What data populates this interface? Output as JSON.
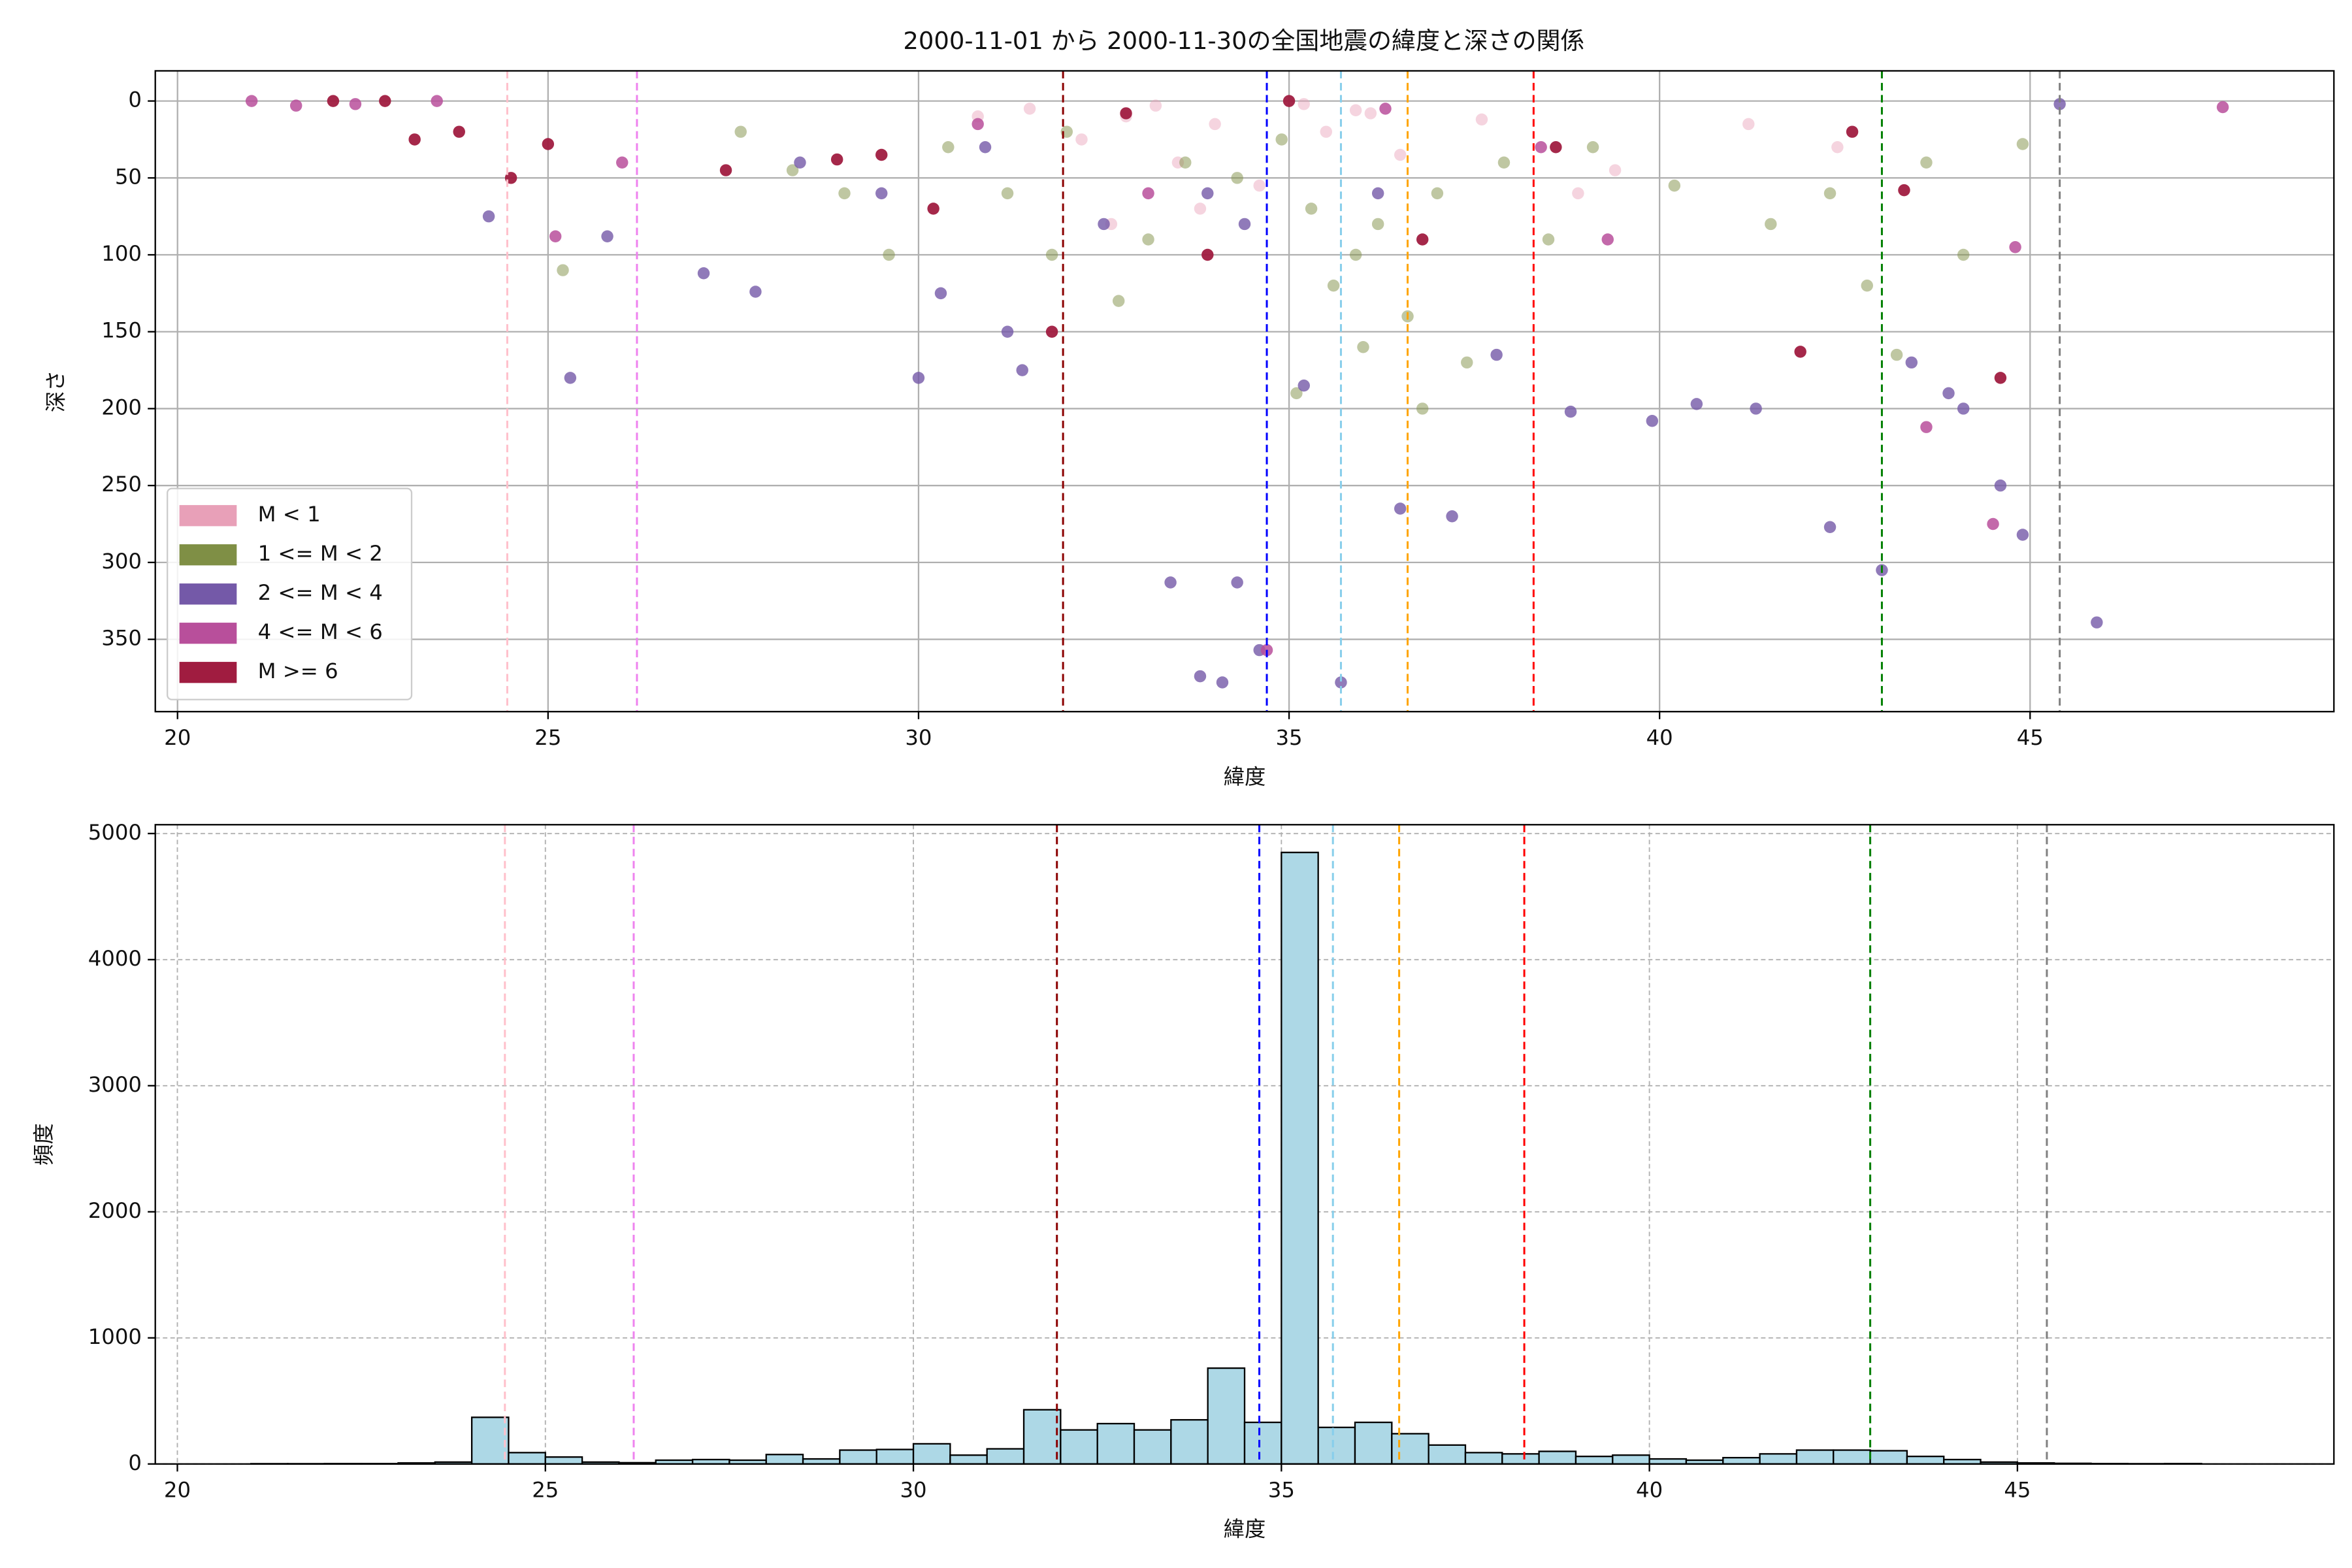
{
  "chart_data": [
    {
      "type": "scatter",
      "title": "2000-11-01 から 2000-11-30の全国地震の緯度と深さの関係",
      "xlabel": "緯度",
      "ylabel": "深さ",
      "xlim": [
        19.7,
        49.1
      ],
      "ylim": [
        397,
        -19.6
      ],
      "xticks": [
        20,
        25,
        30,
        35,
        40,
        45
      ],
      "yticks": [
        0,
        50,
        100,
        150,
        200,
        250,
        300,
        350
      ],
      "grid": true,
      "grid_style": "solid",
      "legend": "lower left",
      "vlines": [
        {
          "x": 24.45,
          "color": "pink"
        },
        {
          "x": 26.2,
          "color": "violet"
        },
        {
          "x": 31.95,
          "color": "darkred"
        },
        {
          "x": 34.7,
          "color": "blue"
        },
        {
          "x": 35.7,
          "color": "skyblue"
        },
        {
          "x": 36.6,
          "color": "orange"
        },
        {
          "x": 38.3,
          "color": "red"
        },
        {
          "x": 43.0,
          "color": "green"
        },
        {
          "x": 45.4,
          "color": "gray"
        }
      ],
      "series": [
        {
          "name": "M < 1",
          "color": "#e8a0b8",
          "alpha": 0.45,
          "x": [
            31.5,
            32.8,
            33.2,
            34.0,
            35.2,
            35.5,
            36.1,
            33.5,
            32.2,
            38.9,
            42.4,
            37.6,
            34.6,
            35.9,
            33.8,
            39.4,
            30.8,
            36.5,
            32.6,
            41.2
          ],
          "values": [
            5,
            10,
            3,
            15,
            2,
            20,
            8,
            40,
            25,
            60,
            30,
            12,
            55,
            6,
            70,
            45,
            10,
            35,
            80,
            15
          ]
        },
        {
          "name": "1 <= M < 2",
          "color": "#7f8f45",
          "alpha": 0.5,
          "x": [
            25.2,
            28.3,
            29.6,
            30.4,
            31.2,
            32.0,
            32.7,
            33.1,
            33.6,
            34.3,
            34.9,
            35.3,
            35.6,
            35.9,
            36.2,
            36.6,
            37.0,
            37.4,
            37.9,
            38.5,
            39.1,
            40.2,
            41.5,
            42.3,
            42.8,
            43.2,
            43.6,
            44.1,
            44.9,
            36.0,
            35.1,
            36.8,
            31.8,
            29.0,
            27.6
          ],
          "values": [
            110,
            45,
            100,
            30,
            60,
            20,
            130,
            90,
            40,
            50,
            25,
            70,
            120,
            100,
            80,
            140,
            60,
            170,
            40,
            90,
            30,
            55,
            80,
            60,
            120,
            165,
            40,
            100,
            28,
            160,
            190,
            200,
            100,
            60,
            20
          ]
        },
        {
          "name": "2 <= M < 4",
          "color": "#7459a8",
          "alpha": 0.8,
          "x": [
            24.2,
            25.3,
            25.8,
            27.1,
            27.8,
            28.4,
            29.5,
            30.0,
            30.9,
            31.2,
            31.4,
            32.5,
            33.4,
            33.9,
            34.1,
            34.3,
            34.6,
            35.2,
            35.7,
            36.2,
            36.5,
            37.2,
            37.8,
            38.8,
            39.9,
            40.5,
            41.3,
            42.3,
            43.0,
            43.4,
            43.9,
            44.1,
            44.6,
            44.9,
            45.4,
            45.9,
            33.8,
            34.4,
            30.3
          ],
          "values": [
            75,
            180,
            88,
            112,
            124,
            40,
            60,
            180,
            30,
            150,
            175,
            80,
            313,
            60,
            378,
            313,
            357,
            185,
            378,
            60,
            265,
            270,
            165,
            202,
            208,
            197,
            200,
            277,
            305,
            170,
            190,
            200,
            250,
            282,
            2,
            339,
            374,
            80,
            125
          ]
        },
        {
          "name": "4 <= M < 6",
          "color": "#b84f9b",
          "alpha": 0.85,
          "x": [
            21.0,
            21.6,
            22.4,
            23.5,
            25.1,
            26.0,
            30.8,
            33.1,
            34.7,
            36.3,
            39.3,
            43.6,
            44.5,
            44.8,
            47.6,
            38.4
          ],
          "values": [
            0,
            3,
            2,
            0,
            88,
            40,
            15,
            60,
            357,
            5,
            90,
            212,
            275,
            95,
            4,
            30
          ]
        },
        {
          "name": "M >= 6",
          "color": "#a01c40",
          "alpha": 0.95,
          "x": [
            22.1,
            23.2,
            23.8,
            24.5,
            25.0,
            27.4,
            28.9,
            30.2,
            31.8,
            32.8,
            33.9,
            35.0,
            36.8,
            38.6,
            41.9,
            42.6,
            43.3,
            44.6,
            22.8,
            29.5
          ],
          "values": [
            0,
            25,
            20,
            50,
            28,
            45,
            38,
            70,
            150,
            8,
            100,
            0,
            90,
            30,
            163,
            20,
            58,
            180,
            0,
            35
          ]
        }
      ]
    },
    {
      "type": "histogram",
      "xlabel": "緯度",
      "ylabel": "頻度",
      "color": "#add8e6",
      "xlim": [
        19.7,
        49.3
      ],
      "ylim": [
        0,
        5070
      ],
      "xticks": [
        20,
        25,
        30,
        35,
        40,
        45
      ],
      "yticks": [
        0,
        1000,
        2000,
        3000,
        4000,
        5000
      ],
      "grid": true,
      "grid_style": "dashed",
      "vlines": [
        {
          "x": 24.45,
          "color": "pink"
        },
        {
          "x": 26.2,
          "color": "violet"
        },
        {
          "x": 31.95,
          "color": "darkred"
        },
        {
          "x": 34.7,
          "color": "blue"
        },
        {
          "x": 35.7,
          "color": "skyblue"
        },
        {
          "x": 36.6,
          "color": "orange"
        },
        {
          "x": 38.3,
          "color": "red"
        },
        {
          "x": 43.0,
          "color": "green"
        },
        {
          "x": 45.4,
          "color": "gray"
        }
      ],
      "bins": [
        21,
        21.5,
        22,
        22.5,
        23,
        23.5,
        24,
        24.5,
        25,
        25.5,
        26,
        26.5,
        27,
        27.5,
        28,
        28.5,
        29,
        29.5,
        30,
        30.5,
        31,
        31.5,
        32,
        32.5,
        33,
        33.5,
        34,
        34.5,
        35,
        35.5,
        36,
        36.5,
        37,
        37.5,
        38,
        38.5,
        39,
        39.5,
        40,
        40.5,
        41,
        41.5,
        42,
        42.5,
        43,
        43.5,
        44,
        44.5,
        45,
        45.5,
        46,
        46.5,
        47,
        47.5
      ],
      "values": [
        2,
        2,
        3,
        3,
        8,
        15,
        370,
        90,
        55,
        15,
        10,
        30,
        35,
        30,
        75,
        40,
        110,
        115,
        160,
        70,
        120,
        430,
        270,
        320,
        270,
        350,
        760,
        330,
        4850,
        290,
        330,
        240,
        150,
        90,
        80,
        100,
        60,
        70,
        40,
        30,
        50,
        80,
        110,
        110,
        105,
        60,
        35,
        15,
        8,
        5,
        3,
        2,
        3
      ]
    }
  ]
}
